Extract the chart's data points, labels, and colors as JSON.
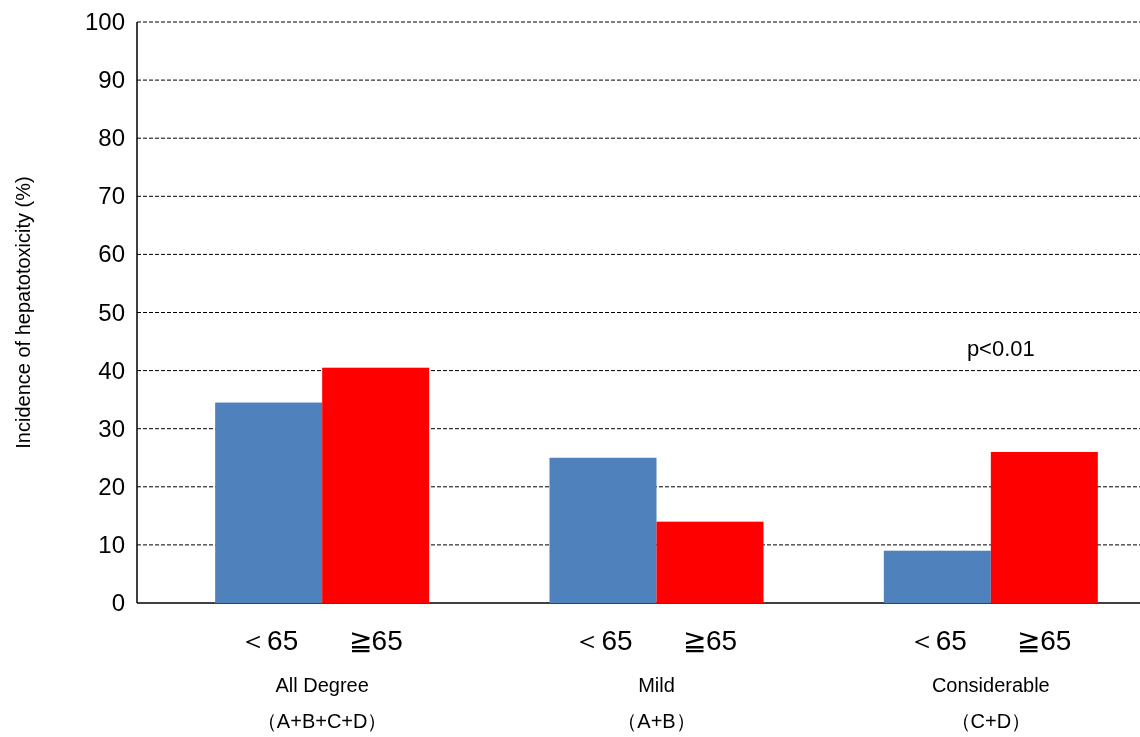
{
  "chart_data": {
    "type": "bar",
    "ylabel": "Incidence of hepatotoxicity (%)",
    "categories": [
      "All Degree\n（A+B+C+D）",
      "Mild\n（A+B）",
      "Considerable\n（C+D）"
    ],
    "series": [
      {
        "name": "＜65",
        "color": "#4f81bd",
        "values": [
          34.5,
          25,
          9
        ]
      },
      {
        "name": "≧65",
        "color": "#ff0000",
        "values": [
          40.5,
          14,
          26
        ]
      }
    ],
    "ylim": [
      0,
      100
    ],
    "yticks": [
      0,
      10,
      20,
      30,
      40,
      50,
      60,
      70,
      80,
      90,
      100
    ],
    "grid": "y",
    "annotations": [
      "p<0.01"
    ]
  }
}
